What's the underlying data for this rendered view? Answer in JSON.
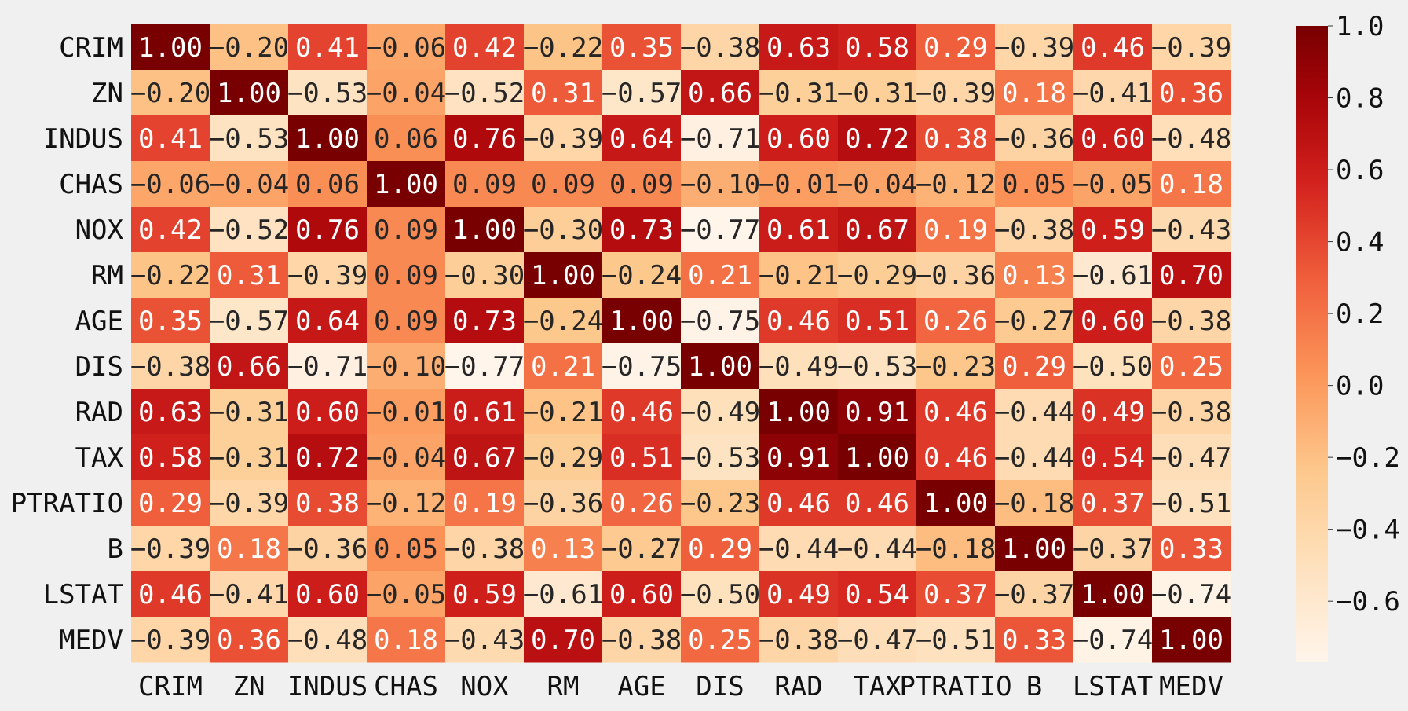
{
  "chart_data": {
    "type": "heatmap",
    "title": "",
    "xlabel": "",
    "ylabel": "",
    "labels": [
      "CRIM",
      "ZN",
      "INDUS",
      "CHAS",
      "NOX",
      "RM",
      "AGE",
      "DIS",
      "RAD",
      "TAX",
      "PTRATIO",
      "B",
      "LSTAT",
      "MEDV"
    ],
    "values": [
      [
        1.0,
        -0.2,
        0.41,
        -0.06,
        0.42,
        -0.22,
        0.35,
        -0.38,
        0.63,
        0.58,
        0.29,
        -0.39,
        0.46,
        -0.39
      ],
      [
        -0.2,
        1.0,
        -0.53,
        -0.04,
        -0.52,
        0.31,
        -0.57,
        0.66,
        -0.31,
        -0.31,
        -0.39,
        0.18,
        -0.41,
        0.36
      ],
      [
        0.41,
        -0.53,
        1.0,
        0.06,
        0.76,
        -0.39,
        0.64,
        -0.71,
        0.6,
        0.72,
        0.38,
        -0.36,
        0.6,
        -0.48
      ],
      [
        -0.06,
        -0.04,
        0.06,
        1.0,
        0.09,
        0.09,
        0.09,
        -0.1,
        -0.01,
        -0.04,
        -0.12,
        0.05,
        -0.05,
        0.18
      ],
      [
        0.42,
        -0.52,
        0.76,
        0.09,
        1.0,
        -0.3,
        0.73,
        -0.77,
        0.61,
        0.67,
        0.19,
        -0.38,
        0.59,
        -0.43
      ],
      [
        -0.22,
        0.31,
        -0.39,
        0.09,
        -0.3,
        1.0,
        -0.24,
        0.21,
        -0.21,
        -0.29,
        -0.36,
        0.13,
        -0.61,
        0.7
      ],
      [
        0.35,
        -0.57,
        0.64,
        0.09,
        0.73,
        -0.24,
        1.0,
        -0.75,
        0.46,
        0.51,
        0.26,
        -0.27,
        0.6,
        -0.38
      ],
      [
        -0.38,
        0.66,
        -0.71,
        -0.1,
        -0.77,
        0.21,
        -0.75,
        1.0,
        -0.49,
        -0.53,
        -0.23,
        0.29,
        -0.5,
        0.25
      ],
      [
        0.63,
        -0.31,
        0.6,
        -0.01,
        0.61,
        -0.21,
        0.46,
        -0.49,
        1.0,
        0.91,
        0.46,
        -0.44,
        0.49,
        -0.38
      ],
      [
        0.58,
        -0.31,
        0.72,
        -0.04,
        0.67,
        -0.29,
        0.51,
        -0.53,
        0.91,
        1.0,
        0.46,
        -0.44,
        0.54,
        -0.47
      ],
      [
        0.29,
        -0.39,
        0.38,
        -0.12,
        0.19,
        -0.36,
        0.26,
        -0.23,
        0.46,
        0.46,
        1.0,
        -0.18,
        0.37,
        -0.51
      ],
      [
        -0.39,
        0.18,
        -0.36,
        0.05,
        -0.38,
        0.13,
        -0.27,
        0.29,
        -0.44,
        -0.44,
        -0.18,
        1.0,
        -0.37,
        0.33
      ],
      [
        0.46,
        -0.41,
        0.6,
        -0.05,
        0.59,
        -0.61,
        0.6,
        -0.5,
        0.49,
        0.54,
        0.37,
        -0.37,
        1.0,
        -0.74
      ],
      [
        -0.39,
        0.36,
        -0.48,
        0.18,
        -0.43,
        0.7,
        -0.38,
        0.25,
        -0.38,
        -0.47,
        -0.51,
        0.33,
        -0.74,
        1.0
      ]
    ],
    "colormap": "OrRd-like",
    "vmin": -0.77,
    "vmax": 1.0,
    "colorbar_ticks": [
      1.0,
      0.8,
      0.6,
      0.4,
      0.2,
      0.0,
      -0.2,
      -0.4,
      -0.6
    ],
    "colorbar_tick_labels": [
      "1.0",
      "0.8",
      "0.6",
      "0.4",
      "0.2",
      "0.0",
      "−0.2",
      "−0.4",
      "−0.6"
    ],
    "legend_placement": "right",
    "grid": false
  }
}
